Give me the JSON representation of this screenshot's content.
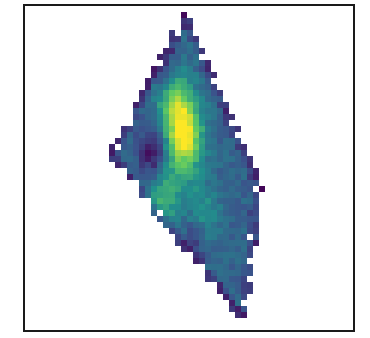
{
  "chart_data": {
    "type": "heatmap",
    "title": "",
    "xlabel": "",
    "ylabel": "",
    "colormap": "viridis",
    "axes_ticks_visible": false,
    "grid": false,
    "legend": "none",
    "colorbar": false,
    "field": {
      "value_range": [
        0,
        1
      ],
      "region_shape": "kite",
      "hotspots": [
        {
          "x": 0.5,
          "y": 0.4,
          "value": 0.98
        },
        {
          "x": 0.42,
          "y": 0.28,
          "value": 0.72
        },
        {
          "x": 0.36,
          "y": 0.58,
          "value": 0.62
        },
        {
          "x": 0.6,
          "y": 0.66,
          "value": 0.55
        },
        {
          "x": 0.46,
          "y": 0.85,
          "value": 0.5
        }
      ],
      "lowspots": [
        {
          "x": 0.3,
          "y": 0.46,
          "value": 0.08
        },
        {
          "x": 0.56,
          "y": 0.73,
          "value": 0.12
        },
        {
          "x": 0.38,
          "y": 0.2,
          "value": 0.15
        }
      ]
    },
    "colors": {
      "low": "#440154",
      "mid_low": "#3b528b",
      "mid": "#21908c",
      "mid_high": "#5ec962",
      "high": "#fde725"
    }
  }
}
